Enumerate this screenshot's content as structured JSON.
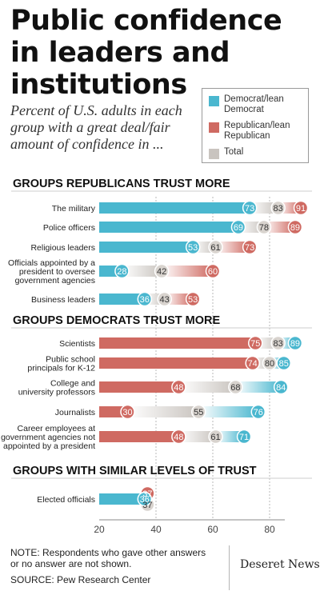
{
  "title": "Public confidence in leaders and institutions",
  "subtitle": "Percent of U.S. adults in each group with a great deal/fair amount of confidence in ...",
  "legend": [
    {
      "key": "dem",
      "label": "Democrat/lean Democrat",
      "color": "#4ab7cf"
    },
    {
      "key": "rep",
      "label": "Republican/lean Republican",
      "color": "#cf6a62"
    },
    {
      "key": "total",
      "label": "Total",
      "color": "#c9c4bf"
    }
  ],
  "colors": {
    "dem": "#4ab7cf",
    "rep": "#cf6a62",
    "total": "#c9c4bf",
    "grid": "#b8b8b8"
  },
  "chart_data": {
    "type": "bar",
    "xlim": [
      20,
      95
    ],
    "xticks": [
      20,
      40,
      60,
      80
    ],
    "groups": [
      {
        "heading": "GROUPS REPUBLICANS TRUST MORE",
        "items": [
          {
            "label": "The military",
            "dem": 73,
            "rep": 91,
            "total": 83
          },
          {
            "label": "Police officers",
            "dem": 69,
            "rep": 89,
            "total": 78
          },
          {
            "label": "Religious leaders",
            "dem": 53,
            "rep": 73,
            "total": 61
          },
          {
            "label": "Officials appointed by a president to oversee government agencies",
            "dem": 28,
            "rep": 60,
            "total": 42
          },
          {
            "label": "Business leaders",
            "dem": 36,
            "rep": 53,
            "total": 43
          }
        ]
      },
      {
        "heading": "GROUPS DEMOCRATS TRUST MORE",
        "items": [
          {
            "label": "Scientists",
            "dem": 89,
            "rep": 75,
            "total": 83
          },
          {
            "label": "Public school principals for K-12",
            "dem": 85,
            "rep": 74,
            "total": 80
          },
          {
            "label": "College and university professors",
            "dem": 84,
            "rep": 48,
            "total": 68
          },
          {
            "label": "Journalists",
            "dem": 76,
            "rep": 30,
            "total": 55
          },
          {
            "label": "Career employees at government agencies not appointed by a president",
            "dem": 71,
            "rep": 48,
            "total": 61
          }
        ]
      },
      {
        "heading": "GROUPS WITH SIMILAR LEVELS OF TRUST",
        "items": [
          {
            "label": "Elected officials",
            "dem": 36,
            "rep": 37,
            "total": 37
          }
        ]
      }
    ]
  },
  "footnote": "NOTE: Respondents who gave other answers or no answer are not shown.",
  "source": "SOURCE: Pew Research Center",
  "logo": "Deseret News"
}
